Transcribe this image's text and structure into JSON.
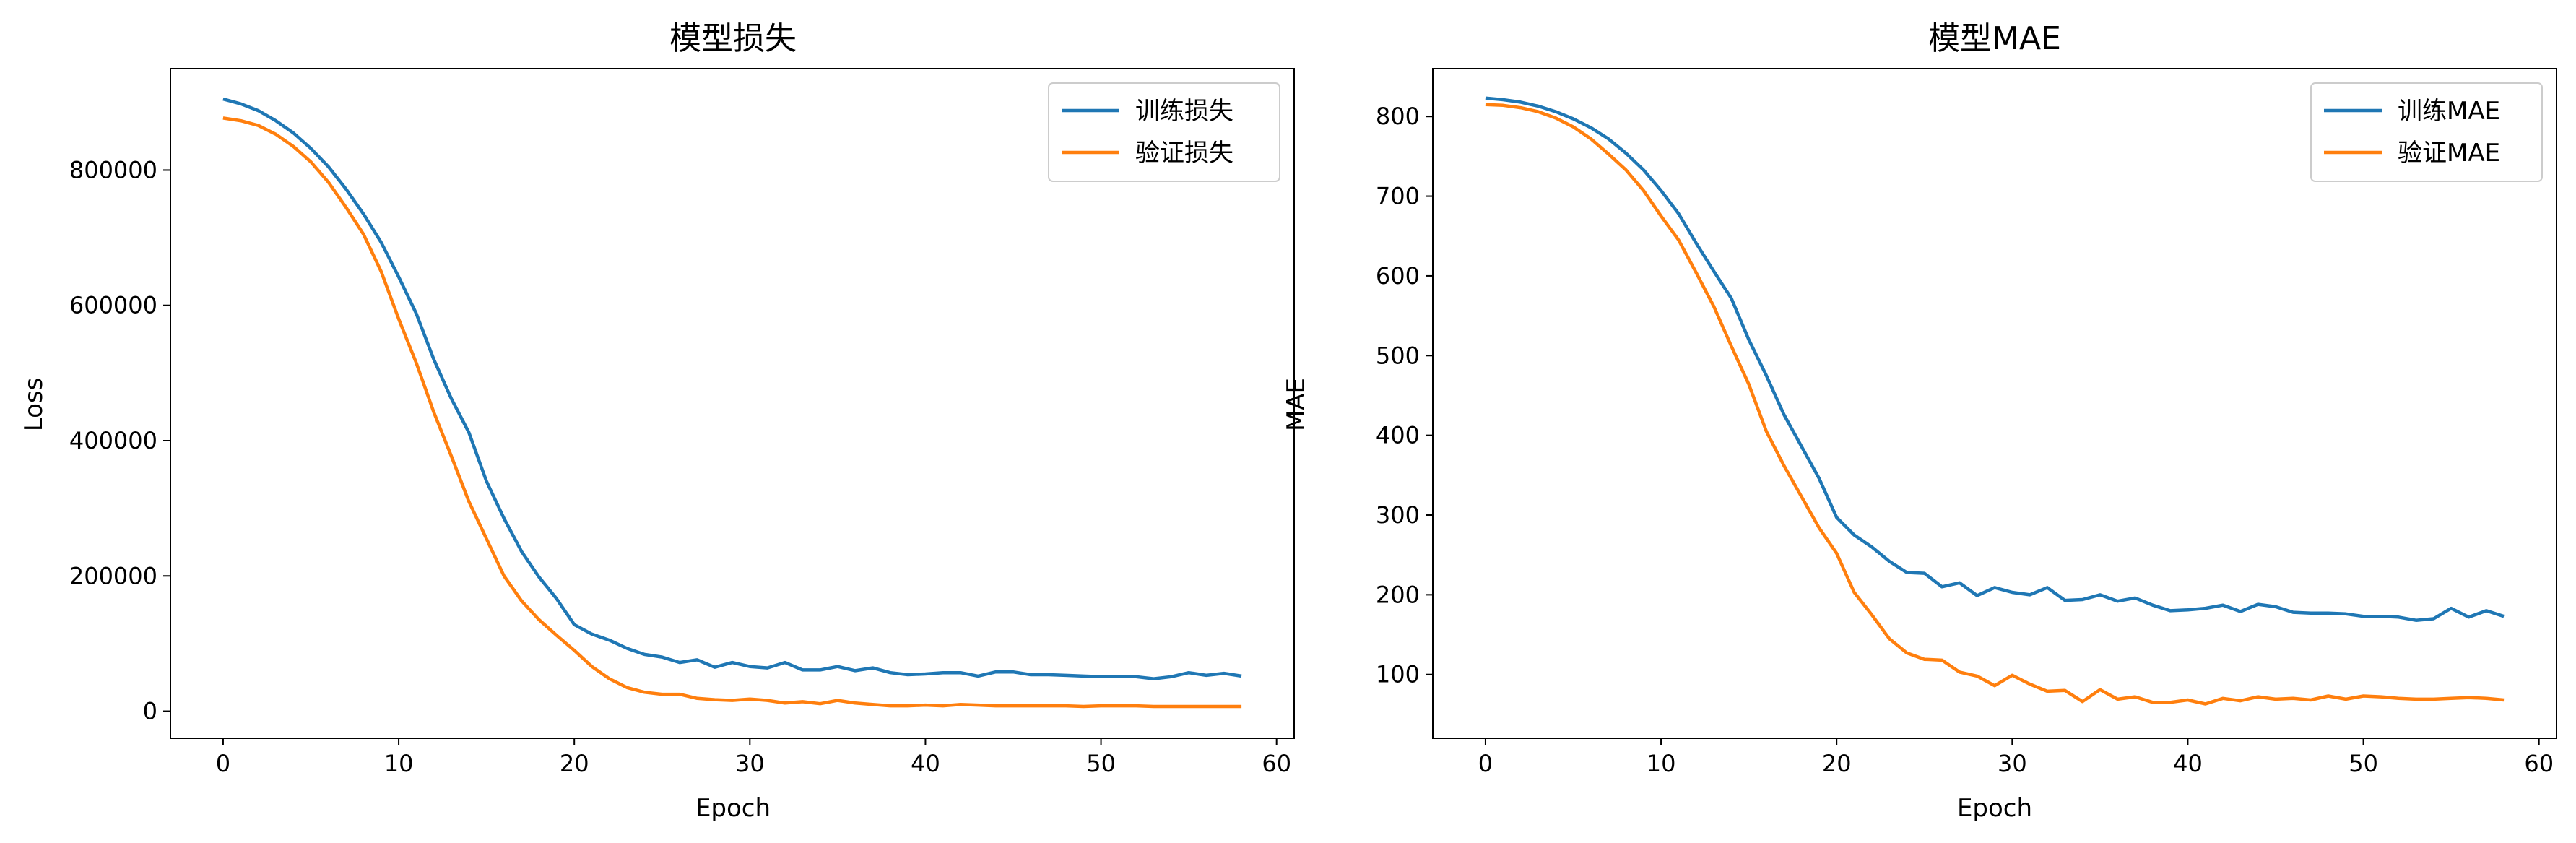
{
  "chart_data": [
    {
      "type": "line",
      "title": "模型损失",
      "xlabel": "Epoch",
      "ylabel": "Loss",
      "xlim": [
        -3,
        61
      ],
      "ylim": [
        -40000,
        950000
      ],
      "xticks": [
        0,
        10,
        20,
        30,
        40,
        50,
        60
      ],
      "yticks": [
        0,
        200000,
        400000,
        600000,
        800000
      ],
      "legend": "top-right",
      "grid": false,
      "x": [
        0,
        1,
        2,
        3,
        4,
        5,
        6,
        7,
        8,
        9,
        10,
        11,
        12,
        13,
        14,
        15,
        16,
        17,
        18,
        19,
        20,
        21,
        22,
        23,
        24,
        25,
        26,
        27,
        28,
        29,
        30,
        31,
        32,
        33,
        34,
        35,
        36,
        37,
        38,
        39,
        40,
        41,
        42,
        43,
        44,
        45,
        46,
        47,
        48,
        49,
        50,
        51,
        52,
        53,
        54,
        55,
        56,
        57,
        58
      ],
      "series": [
        {
          "name": "训练损失",
          "color": "#1f77b4",
          "values": [
            905000,
            898000,
            888000,
            873000,
            855000,
            832000,
            805000,
            772000,
            735000,
            693000,
            642000,
            588000,
            520000,
            462000,
            412000,
            340000,
            285000,
            236000,
            198000,
            166000,
            128000,
            114000,
            105000,
            93000,
            84000,
            80000,
            72000,
            76000,
            65000,
            72000,
            66000,
            64000,
            72000,
            61000,
            61000,
            66000,
            60000,
            64000,
            57000,
            54000,
            55000,
            57000,
            57000,
            52000,
            58000,
            58000,
            54000,
            54000,
            53000,
            52000,
            51000,
            51000,
            51000,
            48000,
            51000,
            57000,
            53000,
            56000,
            52000
          ]
        },
        {
          "name": "验证损失",
          "color": "#ff7f0e",
          "values": [
            877000,
            873000,
            866000,
            853000,
            835000,
            812000,
            782000,
            745000,
            705000,
            650000,
            580000,
            515000,
            442000,
            377000,
            310000,
            255000,
            200000,
            163000,
            135000,
            112000,
            90000,
            66000,
            48000,
            35000,
            28000,
            25000,
            25000,
            19000,
            17000,
            16000,
            18000,
            16000,
            12000,
            14000,
            11000,
            16000,
            12000,
            10000,
            8000,
            8000,
            9000,
            8000,
            10000,
            9000,
            8000,
            8000,
            8000,
            8000,
            8000,
            7000,
            8000,
            8000,
            8000,
            7000,
            7000,
            7000,
            7000,
            7000,
            7000
          ]
        }
      ]
    },
    {
      "type": "line",
      "title": "模型MAE",
      "xlabel": "Epoch",
      "ylabel": "MAE",
      "xlim": [
        -3,
        61
      ],
      "ylim": [
        20,
        860
      ],
      "xticks": [
        0,
        10,
        20,
        30,
        40,
        50,
        60
      ],
      "yticks": [
        100,
        200,
        300,
        400,
        500,
        600,
        700,
        800
      ],
      "legend": "top-right",
      "grid": false,
      "x": [
        0,
        1,
        2,
        3,
        4,
        5,
        6,
        7,
        8,
        9,
        10,
        11,
        12,
        13,
        14,
        15,
        16,
        17,
        18,
        19,
        20,
        21,
        22,
        23,
        24,
        25,
        26,
        27,
        28,
        29,
        30,
        31,
        32,
        33,
        34,
        35,
        36,
        37,
        38,
        39,
        40,
        41,
        42,
        43,
        44,
        45,
        46,
        47,
        48,
        49,
        50,
        51,
        52,
        53,
        54,
        55,
        56,
        57,
        58
      ],
      "series": [
        {
          "name": "训练MAE",
          "color": "#1f77b4",
          "values": [
            823,
            821,
            818,
            813,
            806,
            797,
            786,
            772,
            754,
            733,
            707,
            678,
            641,
            606,
            572,
            520,
            475,
            426,
            386,
            346,
            297,
            275,
            260,
            242,
            228,
            227,
            210,
            215,
            199,
            209,
            203,
            200,
            209,
            193,
            194,
            200,
            192,
            196,
            187,
            180,
            181,
            183,
            187,
            179,
            188,
            185,
            178,
            177,
            177,
            176,
            173,
            173,
            172,
            168,
            170,
            183,
            172,
            180,
            173
          ]
        },
        {
          "name": "验证MAE",
          "color": "#ff7f0e",
          "values": [
            815,
            814,
            811,
            806,
            798,
            787,
            772,
            753,
            733,
            707,
            675,
            645,
            604,
            562,
            512,
            464,
            405,
            362,
            323,
            284,
            252,
            203,
            175,
            145,
            127,
            119,
            118,
            103,
            98,
            86,
            99,
            88,
            79,
            80,
            66,
            81,
            69,
            72,
            65,
            65,
            68,
            63,
            70,
            67,
            72,
            69,
            70,
            68,
            73,
            69,
            73,
            72,
            70,
            69,
            69,
            70,
            71,
            70,
            68
          ]
        }
      ]
    }
  ]
}
